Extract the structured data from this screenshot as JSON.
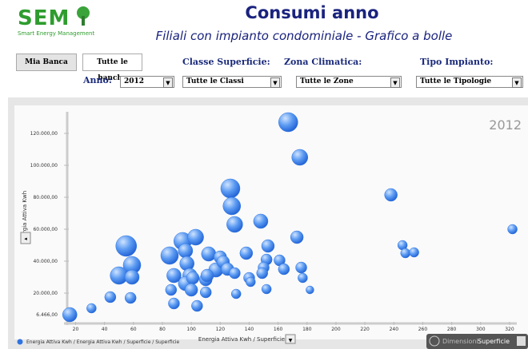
{
  "header": {
    "logo": "SEM",
    "logo_subtitle": "Smart Energy Management",
    "title": "Consumi anno",
    "subtitle": "Filiali con impianto condominiale - Grafico a bolle"
  },
  "tabs": [
    "Mia Banca",
    "Tutte le banche"
  ],
  "filters": [
    {
      "label": "Anno:",
      "value": "2012"
    },
    {
      "label": "Classe Superficie:",
      "value": "Tutte le Classi"
    },
    {
      "label": "Zona Climatica:",
      "value": "Tutte le Zone"
    },
    {
      "label": "Tipo Impianto:",
      "value": "Tutte le Tipologie"
    }
  ],
  "chart_data": {
    "type": "bubble",
    "watermark": "2012",
    "xlabel": "Energia Attiva Kwh / Superficie",
    "ylabel": "Energia Attiva Kwh",
    "dimension_label": "Dimensioni:",
    "dimension_value": "Superficie",
    "xlim": [
      12,
      325
    ],
    "ylim": [
      0,
      133500
    ],
    "xticks": [
      20,
      40,
      60,
      80,
      100,
      120,
      140,
      160,
      180,
      200,
      220,
      240,
      260,
      280,
      300,
      320
    ],
    "yticks": [
      {
        "value": 6466,
        "label": "6.466,00"
      },
      {
        "value": 20000,
        "label": "20.000,00"
      },
      {
        "value": 40000,
        "label": "40.000,00"
      },
      {
        "value": 60000,
        "label": "60.000,00"
      },
      {
        "value": 80000,
        "label": "80.000,00"
      },
      {
        "value": 100000,
        "label": "100.000,00"
      },
      {
        "value": 120000,
        "label": "120.000,00"
      }
    ],
    "series": [
      {
        "name": "Energia Attiva Kwh / Energia Attiva Kwh / Superficie / Superficie",
        "color": "#2f74e0",
        "x": [
          16,
          31,
          44,
          55,
          59,
          50,
          59,
          58,
          85,
          88,
          86,
          88,
          94,
          96,
          97,
          99,
          96,
          103,
          101,
          100,
          104,
          110,
          112,
          117,
          110,
          120,
          111,
          122,
          127,
          128,
          130,
          125,
          130,
          131,
          138,
          140,
          141,
          148,
          153,
          152,
          150,
          149,
          152,
          161,
          164,
          167,
          173,
          175,
          176,
          177,
          182,
          238,
          246,
          248,
          254,
          322
        ],
        "values": [
          6500,
          10500,
          17500,
          49500,
          37500,
          31000,
          30000,
          17000,
          43500,
          31000,
          22000,
          13500,
          52500,
          46500,
          38500,
          31000,
          26000,
          55000,
          29500,
          22000,
          12000,
          20500,
          44500,
          34500,
          28500,
          42500,
          31000,
          39500,
          85500,
          74500,
          63000,
          35000,
          32500,
          19500,
          45000,
          29500,
          27000,
          65000,
          49500,
          41000,
          36000,
          32500,
          22500,
          40500,
          35000,
          127000,
          55000,
          105000,
          36000,
          29500,
          22000,
          81500,
          50000,
          45000,
          45500,
          60000
        ],
        "sizes": [
          81,
          36,
          49,
          169,
          121,
          121,
          81,
          49,
          121,
          81,
          49,
          49,
          121,
          81,
          81,
          81,
          81,
          100,
          64,
          64,
          49,
          49,
          81,
          81,
          64,
          64,
          64,
          64,
          144,
          121,
          100,
          64,
          49,
          36,
          64,
          49,
          36,
          81,
          64,
          49,
          49,
          49,
          36,
          49,
          49,
          144,
          64,
          100,
          49,
          36,
          25,
          64,
          36,
          36,
          36,
          36
        ]
      }
    ]
  }
}
